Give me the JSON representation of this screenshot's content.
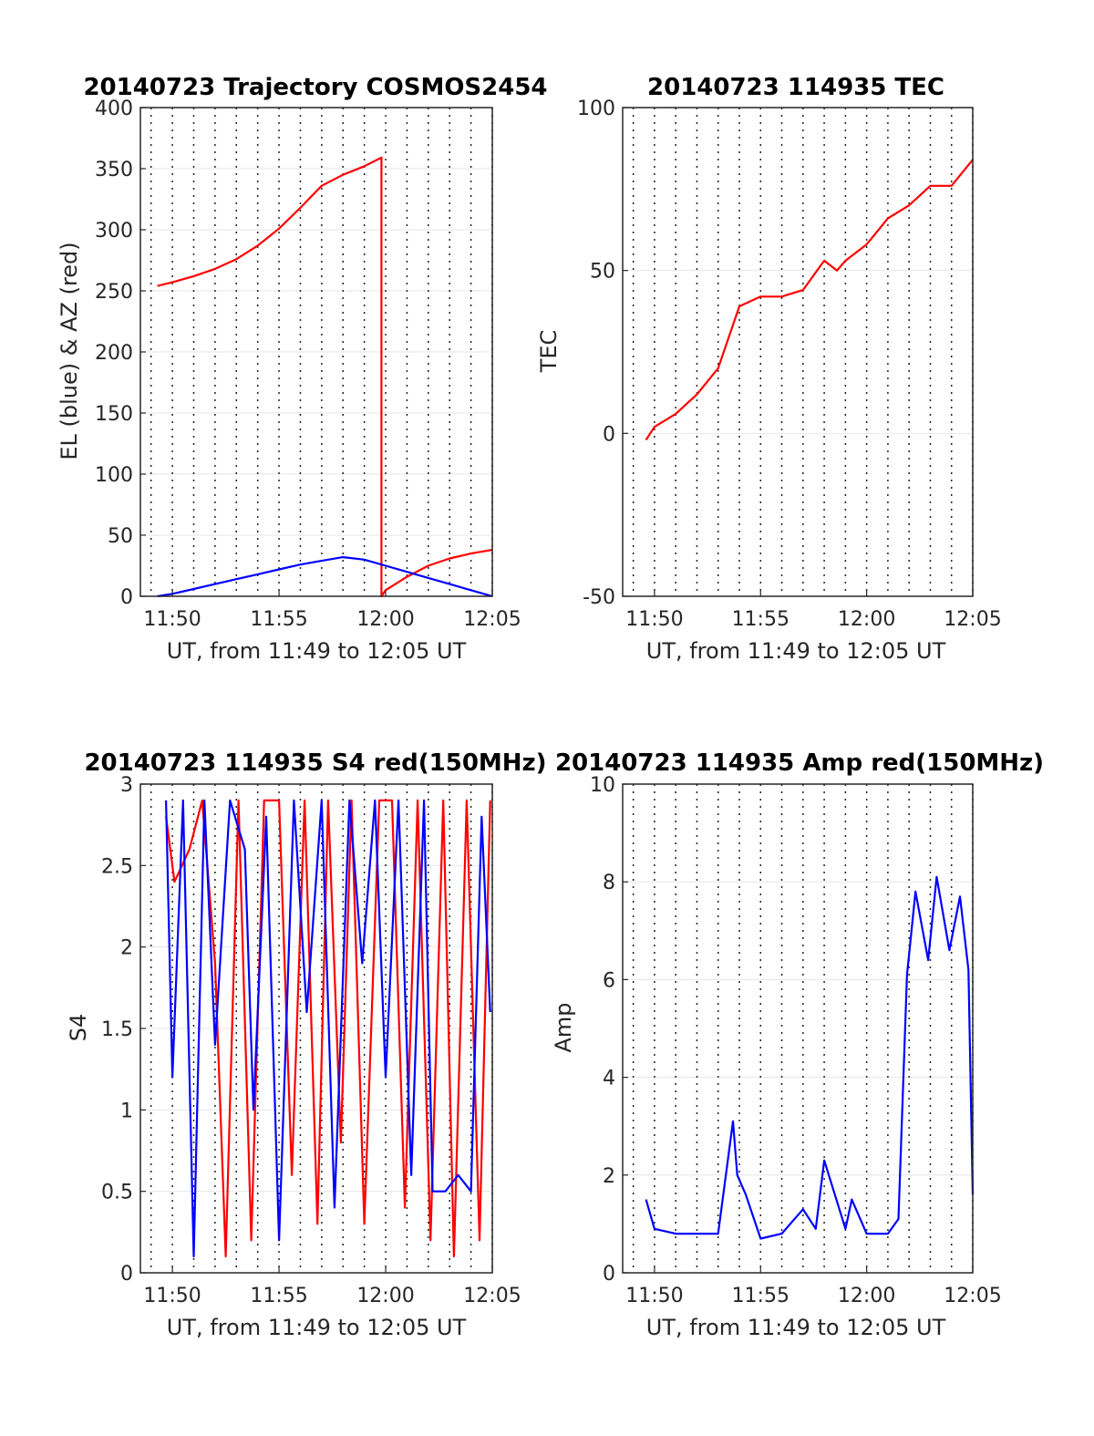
{
  "chart_data": [
    {
      "type": "line",
      "title": "20140723 Trajectory COSMOS2454",
      "xlabel": "UT, from 11:49 to 12:05 UT",
      "ylabel": "EL (blue) & AZ (red)",
      "xlim": [
        "11:48.5",
        "12:05"
      ],
      "ylim": [
        0,
        400
      ],
      "xticks": [
        "11:50",
        "11:55",
        "12:00",
        "12:05"
      ],
      "yticks": [
        "0",
        "50",
        "100",
        "150",
        "200",
        "250",
        "300",
        "350",
        "400"
      ],
      "grid": "dotted vertical every 1 min, light horizontal",
      "series": [
        {
          "color": "#ff0000",
          "x": [
            "11:49.3",
            "11:50",
            "11:51",
            "11:52",
            "11:53",
            "11:54",
            "11:55",
            "11:56",
            "11:57",
            "11:58",
            "11:59",
            "11:59.8",
            "11:59.8",
            "12:00",
            "12:01",
            "12:02",
            "12:03",
            "12:04",
            "12:05"
          ],
          "values": [
            254,
            257,
            262,
            268,
            276,
            287,
            301,
            318,
            336,
            345,
            352,
            359,
            0,
            5,
            16,
            25,
            31,
            35,
            38
          ]
        },
        {
          "color": "#0000ff",
          "x": [
            "11:49.3",
            "11:50",
            "11:51",
            "11:52",
            "11:53",
            "11:54",
            "11:55",
            "11:56",
            "11:57",
            "11:58",
            "11:59",
            "12:00",
            "12:01",
            "12:02",
            "12:03",
            "12:04",
            "12:05"
          ],
          "values": [
            0,
            2,
            6,
            10,
            14,
            18,
            22,
            26,
            29,
            32,
            30,
            25,
            20,
            15,
            10,
            5,
            0
          ]
        }
      ]
    },
    {
      "type": "line",
      "title": "20140723 114935 TEC",
      "xlabel": "UT, from 11:49 to 12:05 UT",
      "ylabel": "TEC",
      "xlim": [
        "11:48.5",
        "12:05"
      ],
      "ylim": [
        -50,
        100
      ],
      "xticks": [
        "11:50",
        "11:55",
        "12:00",
        "12:05"
      ],
      "yticks": [
        "-50",
        "0",
        "50",
        "100"
      ],
      "grid": "dotted vertical every 1 min, light horizontal",
      "series": [
        {
          "color": "#ff0000",
          "x": [
            "11:49.6",
            "11:50",
            "11:51",
            "11:52",
            "11:53",
            "11:54",
            "11:55",
            "11:56",
            "11:57",
            "11:58",
            "11:58.6",
            "11:59",
            "12:00",
            "12:01",
            "12:02",
            "12:03",
            "12:04",
            "12:05"
          ],
          "values": [
            -2,
            2,
            6,
            12,
            20,
            39,
            42,
            42,
            44,
            53,
            50,
            53,
            58,
            66,
            70,
            76,
            76,
            84
          ]
        }
      ]
    },
    {
      "type": "line",
      "title": "20140723 114935 S4 red(150MHz)",
      "xlabel": "UT, from 11:49 to 12:05 UT",
      "ylabel": "S4",
      "xlim": [
        "11:48.5",
        "12:05"
      ],
      "ylim": [
        0,
        3
      ],
      "xticks": [
        "11:50",
        "11:55",
        "12:00",
        "12:05"
      ],
      "yticks": [
        "0",
        "0.5",
        "1",
        "1.5",
        "2",
        "2.5",
        "3"
      ],
      "grid": "dotted vertical every 1 min, light horizontal",
      "series": [
        {
          "color": "#ff0000",
          "x": [
            "11:49.7",
            "11:50.1",
            "11:50.8",
            "11:51.4",
            "11:52",
            "11:52.5",
            "11:53.1",
            "11:53.7",
            "11:54.3",
            "11:55",
            "11:55.6",
            "11:56.2",
            "11:56.8",
            "11:57.3",
            "11:57.9",
            "11:58.4",
            "11:59",
            "11:59.7",
            "12:00.3",
            "12:00.9",
            "12:01.5",
            "12:02.1",
            "12:02.7",
            "12:03.2",
            "12:03.8",
            "12:04.4",
            "12:04.9"
          ],
          "values": [
            2.8,
            2.4,
            2.6,
            2.9,
            1.9,
            0.1,
            2.9,
            0.2,
            2.9,
            2.9,
            0.6,
            2.9,
            0.3,
            2.9,
            0.8,
            2.9,
            0.3,
            2.9,
            2.9,
            0.4,
            2.9,
            0.2,
            2.9,
            0.1,
            2.9,
            0.2,
            2.9
          ]
        },
        {
          "color": "#0000ff",
          "x": [
            "11:49.7",
            "11:50",
            "11:50.5",
            "11:51",
            "11:51.5",
            "11:52",
            "11:52.7",
            "11:53.4",
            "11:53.8",
            "11:54.4",
            "11:55",
            "11:55.7",
            "11:56.3",
            "11:57",
            "11:57.6",
            "11:58.3",
            "11:58.9",
            "11:59.5",
            "12:00",
            "12:00.6",
            "12:01.2",
            "12:01.8",
            "12:02.2",
            "12:02.8",
            "12:03.4",
            "12:04",
            "12:04.5",
            "12:04.9"
          ],
          "values": [
            2.9,
            1.2,
            2.9,
            0.1,
            2.9,
            1.4,
            2.9,
            2.6,
            1.0,
            2.8,
            0.2,
            2.9,
            1.6,
            2.9,
            0.4,
            2.9,
            1.9,
            2.9,
            1.2,
            2.9,
            0.6,
            2.9,
            0.5,
            0.5,
            0.6,
            0.5,
            2.8,
            1.6
          ]
        }
      ]
    },
    {
      "type": "line",
      "title": "20140723 114935 Amp red(150MHz)",
      "xlabel": "UT, from 11:49 to 12:05 UT",
      "ylabel": "Amp",
      "xlim": [
        "11:48.5",
        "12:05"
      ],
      "ylim": [
        0,
        10
      ],
      "xticks": [
        "11:50",
        "11:55",
        "12:00",
        "12:05"
      ],
      "yticks": [
        "0",
        "2",
        "4",
        "6",
        "8",
        "10"
      ],
      "grid": "dotted vertical every 1 min, light horizontal",
      "series": [
        {
          "color": "#0000ff",
          "x": [
            "11:49.6",
            "11:50",
            "11:51",
            "11:52",
            "11:53",
            "11:53.7",
            "11:53.9",
            "11:54.3",
            "11:55",
            "11:56",
            "11:57",
            "11:57.6",
            "11:58",
            "11:59",
            "11:59.3",
            "12:00",
            "12:01",
            "12:01.5",
            "12:01.9",
            "12:02.3",
            "12:02.9",
            "12:03.3",
            "12:03.9",
            "12:04.4",
            "12:04.8",
            "12:05"
          ],
          "values": [
            1.5,
            0.9,
            0.8,
            0.8,
            0.8,
            3.1,
            2.0,
            1.6,
            0.7,
            0.8,
            1.3,
            0.9,
            2.3,
            0.9,
            1.5,
            0.8,
            0.8,
            1.1,
            6.1,
            7.8,
            6.4,
            8.1,
            6.6,
            7.7,
            6.2,
            1.6
          ]
        }
      ]
    }
  ]
}
